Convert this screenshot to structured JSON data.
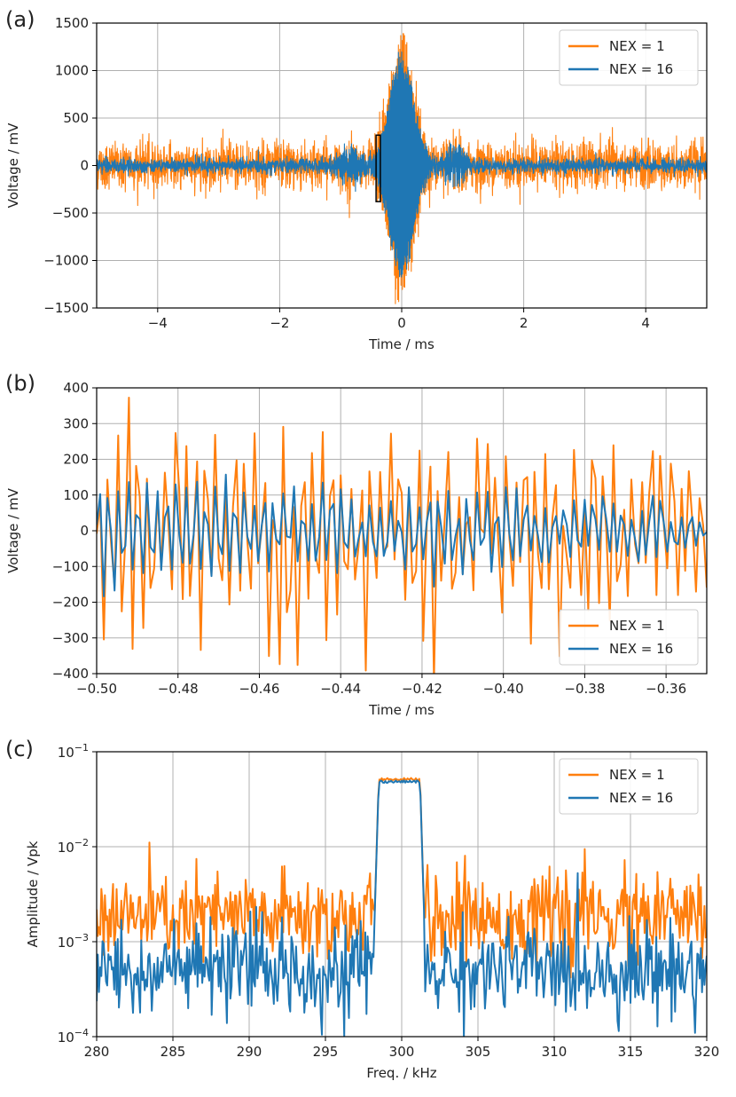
{
  "chart_data": [
    {
      "panel_label": "(a)",
      "type": "line",
      "xlabel": "Time / ms",
      "ylabel": "Voltage / mV",
      "xlim": [
        -5,
        5
      ],
      "ylim": [
        -1500,
        1500
      ],
      "xticks": [
        -4,
        -2,
        0,
        2,
        4
      ],
      "xtick_labels": [
        "−4",
        "−2",
        "0",
        "2",
        "4"
      ],
      "yticks": [
        -1500,
        -1000,
        -500,
        0,
        500,
        1000,
        1500
      ],
      "ytick_labels": [
        "−1500",
        "−1000",
        "−500",
        "0",
        "500",
        "1000",
        "1500"
      ],
      "grid": true,
      "legend_position": "top-right",
      "zoom_box": {
        "x": [
          -0.42,
          -0.35
        ],
        "y": [
          -380,
          320
        ]
      },
      "series": [
        {
          "name": "NEX = 1",
          "color": "#ff7f0e",
          "noise_envelope_mV": 220,
          "peak_mV": 1330
        },
        {
          "name": "NEX = 16",
          "color": "#1f77b4",
          "noise_envelope_mV": 70,
          "peak_mV": 1180
        }
      ],
      "legend": [
        {
          "label": "NEX = 1",
          "color": "#ff7f0e"
        },
        {
          "label": "NEX = 16",
          "color": "#1f77b4"
        }
      ]
    },
    {
      "panel_label": "(b)",
      "type": "line",
      "xlabel": "Time / ms",
      "ylabel": "Voltage / mV",
      "xlim": [
        -0.5,
        -0.35
      ],
      "ylim": [
        -400,
        400
      ],
      "xticks": [
        -0.5,
        -0.48,
        -0.46,
        -0.44,
        -0.42,
        -0.4,
        -0.38,
        -0.36
      ],
      "xtick_labels": [
        "−0.50",
        "−0.48",
        "−0.46",
        "−0.44",
        "−0.42",
        "−0.40",
        "−0.38",
        "−0.36"
      ],
      "yticks": [
        -400,
        -300,
        -200,
        -100,
        0,
        100,
        200,
        300,
        400
      ],
      "ytick_labels": [
        "−400",
        "−300",
        "−200",
        "−100",
        "0",
        "100",
        "200",
        "300",
        "400"
      ],
      "grid": true,
      "legend_position": "bottom-right",
      "series": [
        {
          "name": "NEX = 1",
          "color": "#ff7f0e",
          "approx_amplitude_mV": 300
        },
        {
          "name": "NEX = 16",
          "color": "#1f77b4",
          "approx_amplitude_mV": 160
        }
      ],
      "legend": [
        {
          "label": "NEX = 1",
          "color": "#ff7f0e"
        },
        {
          "label": "NEX = 16",
          "color": "#1f77b4"
        }
      ]
    },
    {
      "panel_label": "(c)",
      "type": "line",
      "xlabel": "Freq. / kHz",
      "ylabel": "Amplitude / Vpk",
      "yscale": "log",
      "xlim": [
        280,
        320
      ],
      "ylim": [
        0.0001,
        0.1
      ],
      "xticks": [
        280,
        285,
        290,
        295,
        300,
        305,
        310,
        315,
        320
      ],
      "xtick_labels": [
        "280",
        "285",
        "290",
        "295",
        "300",
        "305",
        "310",
        "315",
        "320"
      ],
      "yticks": [
        0.0001,
        0.001,
        0.01,
        0.1
      ],
      "ytick_labels": [
        {
          "base": "10",
          "exp": "−4"
        },
        {
          "base": "10",
          "exp": "−3"
        },
        {
          "base": "10",
          "exp": "−2"
        },
        {
          "base": "10",
          "exp": "−1"
        }
      ],
      "grid": true,
      "legend_position": "top-right",
      "passband_kHz": [
        298.5,
        301.2
      ],
      "series": [
        {
          "name": "NEX = 1",
          "color": "#ff7f0e",
          "noise_floor_Vpk": 0.0018,
          "peak_Vpk": 0.053
        },
        {
          "name": "NEX = 16",
          "color": "#1f77b4",
          "noise_floor_Vpk": 0.0005,
          "peak_Vpk": 0.05
        }
      ],
      "legend": [
        {
          "label": "NEX = 1",
          "color": "#ff7f0e"
        },
        {
          "label": "NEX = 16",
          "color": "#1f77b4"
        }
      ]
    }
  ]
}
